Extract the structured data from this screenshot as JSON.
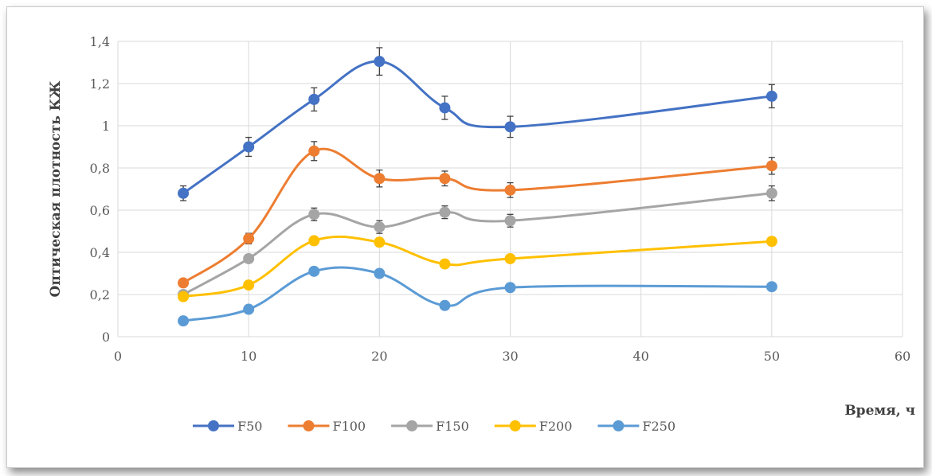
{
  "chart_data": {
    "type": "line",
    "title": "",
    "xlabel": "Время, ч",
    "ylabel": "Оптическая плотность КЖ",
    "xlim": [
      0,
      60
    ],
    "ylim": [
      0,
      1.4
    ],
    "x_ticks": [
      0,
      10,
      20,
      30,
      40,
      50,
      60
    ],
    "y_ticks": [
      0,
      0.2,
      0.4,
      0.6,
      0.8,
      1,
      1.2,
      1.4
    ],
    "x_tick_labels": [
      "0",
      "10",
      "20",
      "30",
      "40",
      "50",
      "60"
    ],
    "y_tick_labels": [
      "0",
      "0,2",
      "0,4",
      "0,6",
      "0,8",
      "1",
      "1,2",
      "1,4"
    ],
    "grid": true,
    "legend_position": "bottom",
    "x": [
      5,
      10,
      15,
      20,
      25,
      30,
      50
    ],
    "series": [
      {
        "name": "F50",
        "color": "#4472C4",
        "values": [
          0.68,
          0.9,
          1.125,
          1.305,
          1.085,
          0.995,
          1.14
        ],
        "errors": [
          0.035,
          0.045,
          0.055,
          0.065,
          0.055,
          0.05,
          0.055
        ]
      },
      {
        "name": "F100",
        "color": "#ED7D31",
        "values": [
          0.255,
          0.465,
          0.88,
          0.75,
          0.75,
          0.695,
          0.81
        ],
        "errors": [
          0.015,
          0.025,
          0.045,
          0.04,
          0.035,
          0.035,
          0.04
        ]
      },
      {
        "name": "F150",
        "color": "#A5A5A5",
        "values": [
          0.2,
          0.37,
          0.58,
          0.52,
          0.59,
          0.55,
          0.68
        ],
        "errors": [
          0.01,
          0.02,
          0.03,
          0.03,
          0.03,
          0.03,
          0.035
        ]
      },
      {
        "name": "F200",
        "color": "#FFC000",
        "values": [
          0.19,
          0.245,
          0.455,
          0.448,
          0.345,
          0.37,
          0.452
        ],
        "errors": [
          0.01,
          0.015,
          0.02,
          0.02,
          0.015,
          0.015,
          0.02
        ]
      },
      {
        "name": "F250",
        "color": "#5B9BD5",
        "values": [
          0.075,
          0.13,
          0.31,
          0.3,
          0.148,
          0.233,
          0.237
        ],
        "errors": [
          0,
          0,
          0,
          0,
          0,
          0,
          0
        ]
      }
    ]
  }
}
